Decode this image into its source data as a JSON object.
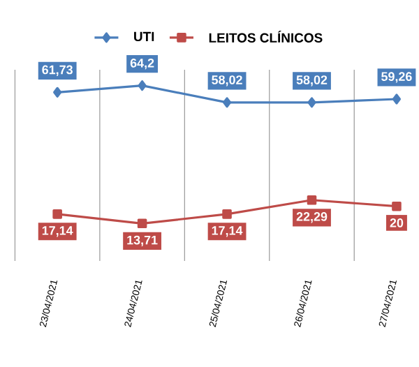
{
  "chart_data": {
    "type": "line",
    "categories": [
      "23/04/2021",
      "24/04/2021",
      "25/04/2021",
      "26/04/2021",
      "27/04/2021"
    ],
    "series": [
      {
        "name": "UTI",
        "color": "#4a7ebb",
        "marker": "diamond",
        "values": [
          61.73,
          64.2,
          58.02,
          58.02,
          59.26
        ],
        "value_labels": [
          "61,73",
          "64,2",
          "58,02",
          "58,02",
          "59,26"
        ]
      },
      {
        "name": "LEITOS CLÍNICOS",
        "color": "#be4b48",
        "marker": "square",
        "values": [
          17.14,
          13.71,
          17.14,
          22.29,
          20
        ],
        "value_labels": [
          "17,14",
          "13,71",
          "17,14",
          "22,29",
          "20"
        ]
      }
    ],
    "grid": "x",
    "legend": "top"
  }
}
